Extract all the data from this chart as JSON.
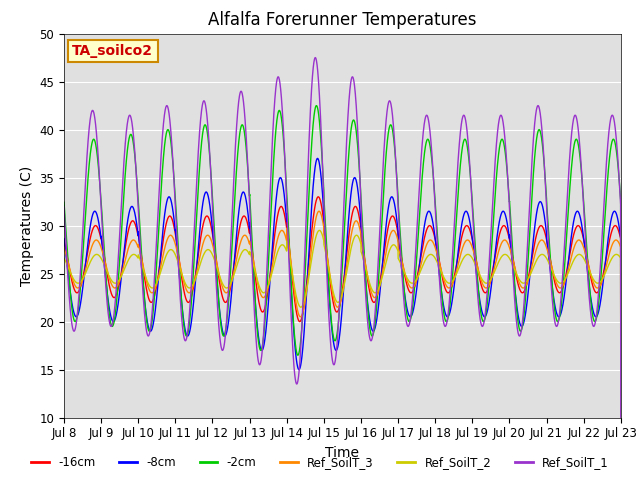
{
  "title": "Alfalfa Forerunner Temperatures",
  "xlabel": "Time",
  "ylabel": "Temperatures (C)",
  "annotation": "TA_soilco2",
  "annotation_color": "#cc0000",
  "annotation_bg": "#ffffcc",
  "annotation_border": "#cc8800",
  "ylim": [
    10,
    50
  ],
  "xlim_start": 8,
  "xlim_end": 23,
  "xtick_labels": [
    "Jul 8",
    "Jul 9",
    "Jul 10",
    "Jul 11",
    "Jul 12",
    "Jul 13",
    "Jul 14",
    "Jul 15",
    "Jul 16",
    "Jul 17",
    "Jul 18",
    "Jul 19",
    "Jul 20",
    "Jul 21",
    "Jul 22",
    "Jul 23"
  ],
  "series_colors": {
    "-16cm": "#ff0000",
    "-8cm": "#0000ff",
    "-2cm": "#00cc00",
    "Ref_SoilT_3": "#ff8800",
    "Ref_SoilT_2": "#cccc00",
    "Ref_SoilT_1": "#9933cc"
  },
  "legend_order": [
    "-16cm",
    "-8cm",
    "-2cm",
    "Ref_SoilT_3",
    "Ref_SoilT_2",
    "Ref_SoilT_1"
  ],
  "background_color": "#e0e0e0",
  "grid_color": "#ffffff"
}
